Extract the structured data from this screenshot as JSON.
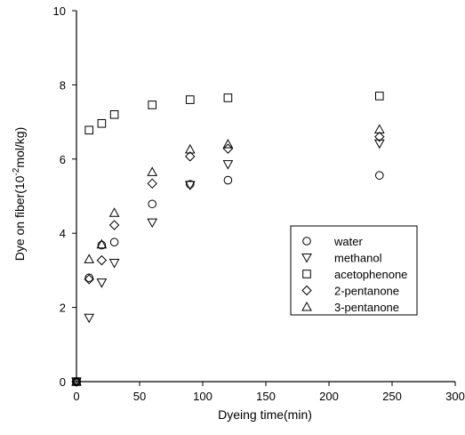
{
  "chart_data": {
    "type": "scatter",
    "xlabel": "Dyeing time(min)",
    "ylabel_parts": {
      "before": "Dye on fiber(10",
      "superscript": "-2",
      "after": "mol/kg)"
    },
    "xlim": [
      0,
      300
    ],
    "ylim": [
      0,
      10
    ],
    "x_ticks": [
      0,
      50,
      100,
      150,
      200,
      250,
      300
    ],
    "y_ticks": [
      0,
      2,
      4,
      6,
      8,
      10
    ],
    "grid": false,
    "legend_position": "center-right",
    "series": [
      {
        "name": "water",
        "marker": "circle",
        "points": [
          [
            0,
            0
          ],
          [
            10,
            2.8
          ],
          [
            20,
            3.68
          ],
          [
            30,
            3.76
          ],
          [
            60,
            4.79
          ],
          [
            90,
            5.32
          ],
          [
            120,
            5.43
          ],
          [
            240,
            5.56
          ]
        ]
      },
      {
        "name": "methanol",
        "marker": "triangle-down",
        "points": [
          [
            0,
            0
          ],
          [
            10,
            1.72
          ],
          [
            20,
            2.67
          ],
          [
            30,
            3.2
          ],
          [
            60,
            4.29
          ],
          [
            90,
            5.3
          ],
          [
            120,
            5.86
          ],
          [
            240,
            6.42
          ]
        ]
      },
      {
        "name": "acetophenone",
        "marker": "square",
        "points": [
          [
            0,
            0
          ],
          [
            10,
            6.78
          ],
          [
            20,
            6.96
          ],
          [
            30,
            7.2
          ],
          [
            60,
            7.46
          ],
          [
            90,
            7.6
          ],
          [
            120,
            7.65
          ],
          [
            240,
            7.7
          ]
        ]
      },
      {
        "name": "2-pentanone",
        "marker": "diamond",
        "points": [
          [
            0,
            0
          ],
          [
            10,
            2.76
          ],
          [
            20,
            3.27
          ],
          [
            30,
            4.22
          ],
          [
            60,
            5.34
          ],
          [
            90,
            6.07
          ],
          [
            120,
            6.28
          ],
          [
            240,
            6.6
          ]
        ]
      },
      {
        "name": "3-pentanone",
        "marker": "triangle-up",
        "points": [
          [
            0,
            0
          ],
          [
            10,
            3.3
          ],
          [
            20,
            3.7
          ],
          [
            30,
            4.55
          ],
          [
            60,
            5.65
          ],
          [
            90,
            6.26
          ],
          [
            120,
            6.4
          ],
          [
            240,
            6.8
          ]
        ]
      }
    ]
  }
}
